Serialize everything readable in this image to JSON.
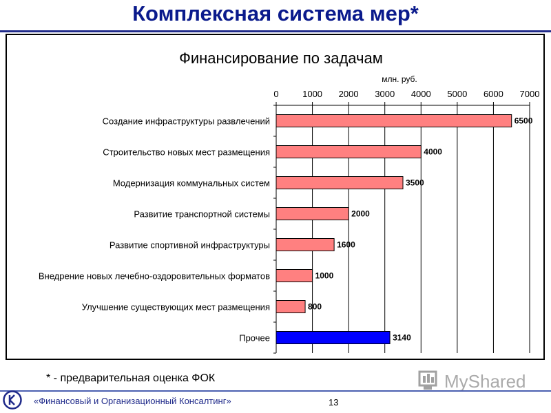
{
  "slide": {
    "title": "Комплексная система мер*",
    "footnote": "* - предварительная оценка  ФОК",
    "company": "«Финансовый и Организационный Консалтинг»",
    "page_number": "13",
    "watermark_text": "MyShared"
  },
  "colors": {
    "title": "#0a1a8c",
    "bar_default": "#ff8080",
    "bar_highlight": "#0000ff",
    "frame": "#000000"
  },
  "chart_data": {
    "type": "bar",
    "orientation": "horizontal",
    "title": "Финансирование по задачам",
    "unit_label": "млн. руб.",
    "xlim": [
      0,
      7000
    ],
    "xticks": [
      0,
      1000,
      2000,
      3000,
      4000,
      5000,
      6000,
      7000
    ],
    "x_axis_position": "top",
    "grid": true,
    "categories": [
      "Создание инфраструктуры развлечений",
      "Строительство новых мест размещения",
      "Модернизация коммунальных систем",
      "Развитие транспортной системы",
      "Развитие спортивной инфраструктуры",
      "Внедрение новых лечебно-оздоровительных форматов",
      "Улучшение существующих мест размещения",
      "Прочее"
    ],
    "values": [
      6500,
      4000,
      3500,
      2000,
      1600,
      1000,
      800,
      3140
    ],
    "data_labels": [
      "6500",
      "4000",
      "3500",
      "2000",
      "1600",
      "1000",
      "800",
      "3140"
    ],
    "highlight_category": "Прочее"
  }
}
